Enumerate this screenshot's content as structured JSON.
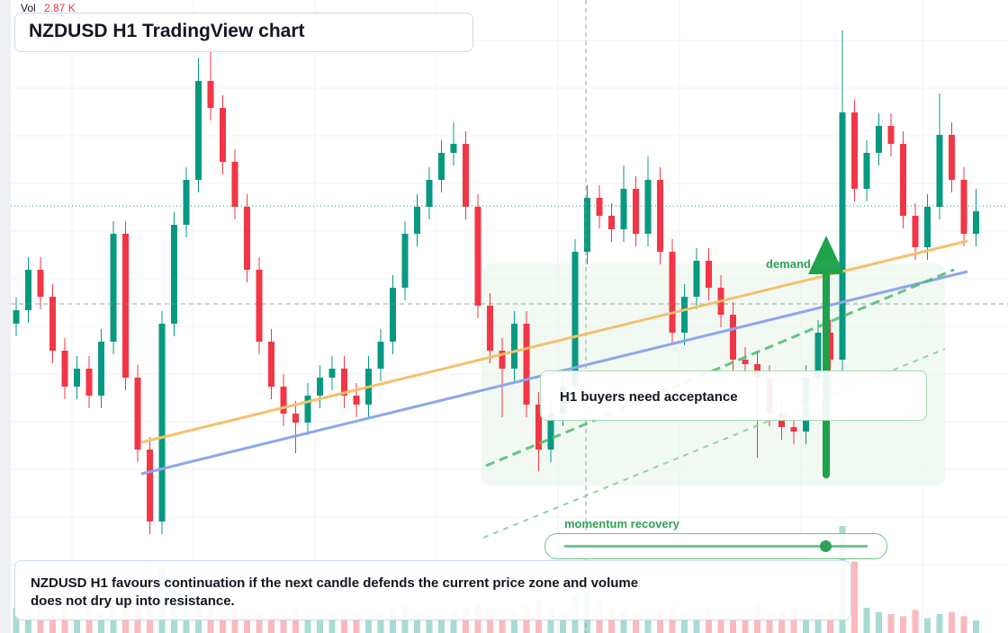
{
  "header": {
    "title": "NZDUSD H1 TradingView chart"
  },
  "chart_data": {
    "type": "candlestick",
    "open": [
      344,
      359,
      404,
      374,
      314,
      274,
      294,
      264,
      324,
      444,
      284,
      204,
      124,
      344,
      454,
      504,
      614,
      584,
      524,
      474,
      404,
      324,
      274,
      244,
      234,
      264,
      284,
      294,
      264,
      254,
      294,
      324,
      384,
      444,
      474,
      504,
      534,
      544,
      474,
      364,
      314,
      294,
      344,
      254,
      204,
      244,
      274,
      424,
      484,
      464,
      449,
      494,
      444,
      504,
      424,
      334,
      374,
      414,
      384,
      354,
      304,
      299,
      284,
      244,
      229,
      224,
      284,
      334,
      304,
      579,
      494,
      534,
      564,
      544,
      464,
      429,
      474,
      554,
      504,
      444
    ],
    "high": [
      373,
      418,
      418,
      388,
      328,
      308,
      308,
      338,
      458,
      458,
      298,
      218,
      358,
      468,
      518,
      640,
      650,
      598,
      538,
      488,
      418,
      338,
      288,
      258,
      278,
      298,
      308,
      308,
      278,
      308,
      338,
      398,
      458,
      488,
      518,
      548,
      568,
      558,
      488,
      378,
      328,
      358,
      358,
      268,
      258,
      288,
      438,
      498,
      498,
      478,
      520,
      508,
      530,
      518,
      438,
      388,
      428,
      428,
      398,
      368,
      318,
      313,
      298,
      258,
      243,
      298,
      348,
      348,
      670,
      593,
      548,
      578,
      578,
      558,
      478,
      488,
      600,
      568,
      518,
      494
    ],
    "low": [
      330,
      345,
      360,
      300,
      260,
      260,
      250,
      250,
      310,
      270,
      190,
      110,
      110,
      330,
      440,
      490,
      570,
      510,
      460,
      390,
      310,
      260,
      230,
      200,
      220,
      250,
      270,
      250,
      240,
      240,
      280,
      310,
      370,
      430,
      460,
      490,
      520,
      460,
      350,
      300,
      240,
      280,
      240,
      180,
      190,
      230,
      260,
      410,
      450,
      435,
      435,
      430,
      430,
      410,
      320,
      320,
      360,
      370,
      340,
      290,
      285,
      195,
      230,
      215,
      210,
      210,
      270,
      290,
      290,
      480,
      480,
      520,
      530,
      450,
      415,
      415,
      460,
      490,
      430,
      430
    ],
    "close": [
      359,
      404,
      374,
      314,
      274,
      294,
      264,
      324,
      444,
      284,
      204,
      124,
      344,
      454,
      504,
      614,
      584,
      524,
      474,
      404,
      324,
      274,
      244,
      234,
      264,
      284,
      294,
      264,
      254,
      294,
      324,
      384,
      444,
      474,
      504,
      534,
      544,
      474,
      364,
      314,
      294,
      344,
      254,
      204,
      244,
      274,
      424,
      484,
      464,
      449,
      494,
      444,
      504,
      424,
      334,
      374,
      414,
      384,
      354,
      304,
      299,
      284,
      244,
      229,
      224,
      284,
      334,
      304,
      579,
      494,
      534,
      564,
      544,
      464,
      429,
      474,
      554,
      504,
      444,
      469
    ],
    "ylim": [
      0,
      704
    ],
    "colors": {
      "up": "#089981",
      "down": "#f23645"
    },
    "volume": {
      "name": "Vol",
      "last_label": "2.87 K",
      "values": [
        1.2,
        0.8,
        1.5,
        0.9,
        1.1,
        0.7,
        1.3,
        1.0,
        1.6,
        2.0,
        1.4,
        1.8,
        3.2,
        2.4,
        1.9,
        1.5,
        1.2,
        0.9,
        1.1,
        0.8,
        1.0,
        0.7,
        0.9,
        1.2,
        0.8,
        0.6,
        0.9,
        0.7,
        1.0,
        0.8,
        0.9,
        1.1,
        1.3,
        0.9,
        0.8,
        0.7,
        1.0,
        1.2,
        1.4,
        0.9,
        0.8,
        1.0,
        1.3,
        1.6,
        1.1,
        0.9,
        1.8,
        2.2,
        1.5,
        1.2,
        1.0,
        0.9,
        0.8,
        1.1,
        1.3,
        0.9,
        0.8,
        1.0,
        0.7,
        0.6,
        0.8,
        1.4,
        0.9,
        1.0,
        1.2,
        0.8,
        0.9,
        1.1,
        5.1,
        3.4,
        1.2,
        1.0,
        0.9,
        0.8,
        1.1,
        0.7,
        0.9,
        1.0,
        0.8,
        0.6
      ],
      "ylim": [
        0,
        6
      ]
    }
  },
  "annotations": {
    "zone": "demand zone",
    "callout": "H1 buyers need acceptance",
    "slider": "momentum recovery"
  },
  "footer": {
    "text": "NZDUSD H1 favours continuation if the next candle defends the current price zone and volume does not dry up into resistance."
  }
}
